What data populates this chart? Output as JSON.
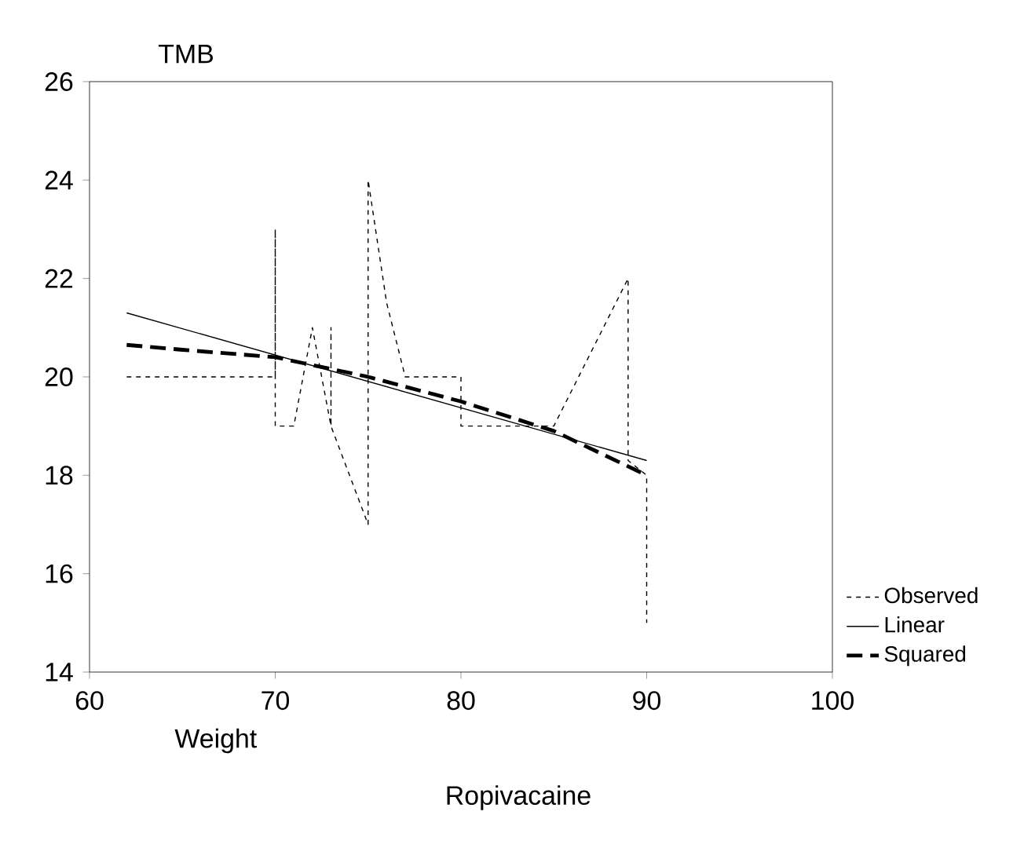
{
  "chart_data": {
    "type": "line",
    "ylabel": "TMB",
    "xlabel": "Weight",
    "annotations": [
      "Ropivacaine"
    ],
    "xlim": [
      60,
      100
    ],
    "ylim": [
      14,
      26
    ],
    "xticks": [
      60,
      70,
      80,
      90,
      100
    ],
    "yticks": [
      14,
      16,
      18,
      20,
      22,
      24,
      26
    ],
    "grid": false,
    "legend": "bottom right",
    "marker": "none",
    "series": [
      {
        "name": "Observed",
        "color": "#000000",
        "line_style": "dashed",
        "x": [
          62,
          70,
          70,
          70,
          71,
          72,
          73,
          73,
          73,
          75,
          75,
          76,
          77,
          80,
          80,
          85,
          89,
          89,
          90,
          90
        ],
        "values": [
          20,
          20,
          23,
          19,
          19,
          21,
          19,
          21,
          19,
          17,
          24,
          21.5,
          20,
          20,
          19,
          19,
          22,
          18.3,
          18,
          15
        ]
      },
      {
        "name": "Linear",
        "color": "#000000",
        "line_style": "solid",
        "x": [
          62,
          90
        ],
        "values": [
          21.3,
          18.3
        ]
      },
      {
        "name": "Squared",
        "color": "#000000",
        "line_style": "thick dashed",
        "x": [
          62,
          65,
          70,
          75,
          80,
          85,
          90
        ],
        "values": [
          20.65,
          20.55,
          20.4,
          20.0,
          19.5,
          18.9,
          18.0
        ]
      }
    ]
  }
}
